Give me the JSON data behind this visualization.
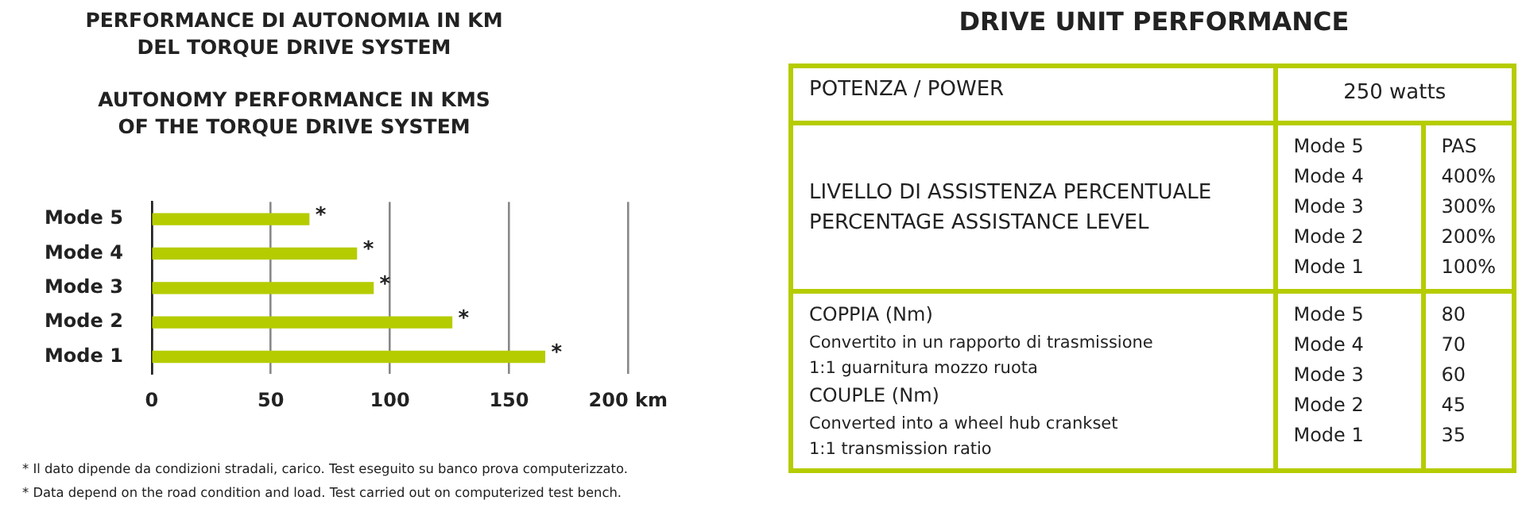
{
  "chart_data": [
    {
      "type": "bar",
      "orientation": "horizontal",
      "title": "PERFORMANCE DI AUTONOMIA IN KM\nDEL TORQUE DRIVE SYSTEM",
      "subtitle": "AUTONOMY PERFORMANCE IN KMS\nOF THE TORQUE DRIVE SYSTEM",
      "categories": [
        "Mode 5",
        "Mode 4",
        "Mode 3",
        "Mode 2",
        "Mode 1"
      ],
      "values": [
        66,
        86,
        93,
        126,
        165
      ],
      "color": "#b5cc00",
      "value_labels": [
        "*",
        "*",
        "*",
        "*",
        "*"
      ],
      "xlim": [
        0,
        200
      ],
      "xticks": [
        0,
        50,
        100,
        150,
        {
          "value": 200,
          "label": "200 km"
        }
      ],
      "grid": "x",
      "legend": false,
      "annotations": [
        "* Il dato dipende da condizioni stradali, carico. Test eseguito su banco prova computerizzato.",
        "* Data depend on the road condition and load. Test carried out on computerized test bench."
      ]
    },
    {
      "type": "other",
      "title": "DRIVE UNIT PERFORMANCE",
      "color": "#b5cc00",
      "annotations": [
        "POTENZA / POWER",
        "250 watts",
        "LIVELLO DI ASSISTENZA PERCENTUALE\nPERCENTAGE ASSISTANCE LEVEL",
        "Mode 5\nMode 4\nMode 3\nMode 2\nMode 1",
        "PAS\n400%\n300%\n200%\n100%",
        "COPPIA (Nm)",
        "Convertito in un rapporto di trasmissione\n1:1 guarnitura mozzo ruota",
        "COUPLE (Nm)",
        "Converted into a  wheel hub crankset\n1:1 transmission ratio",
        "Mode 5\nMode 4\nMode 3\nMode 2\nMode 1",
        "80\n70\n60\n45\n35"
      ]
    }
  ]
}
